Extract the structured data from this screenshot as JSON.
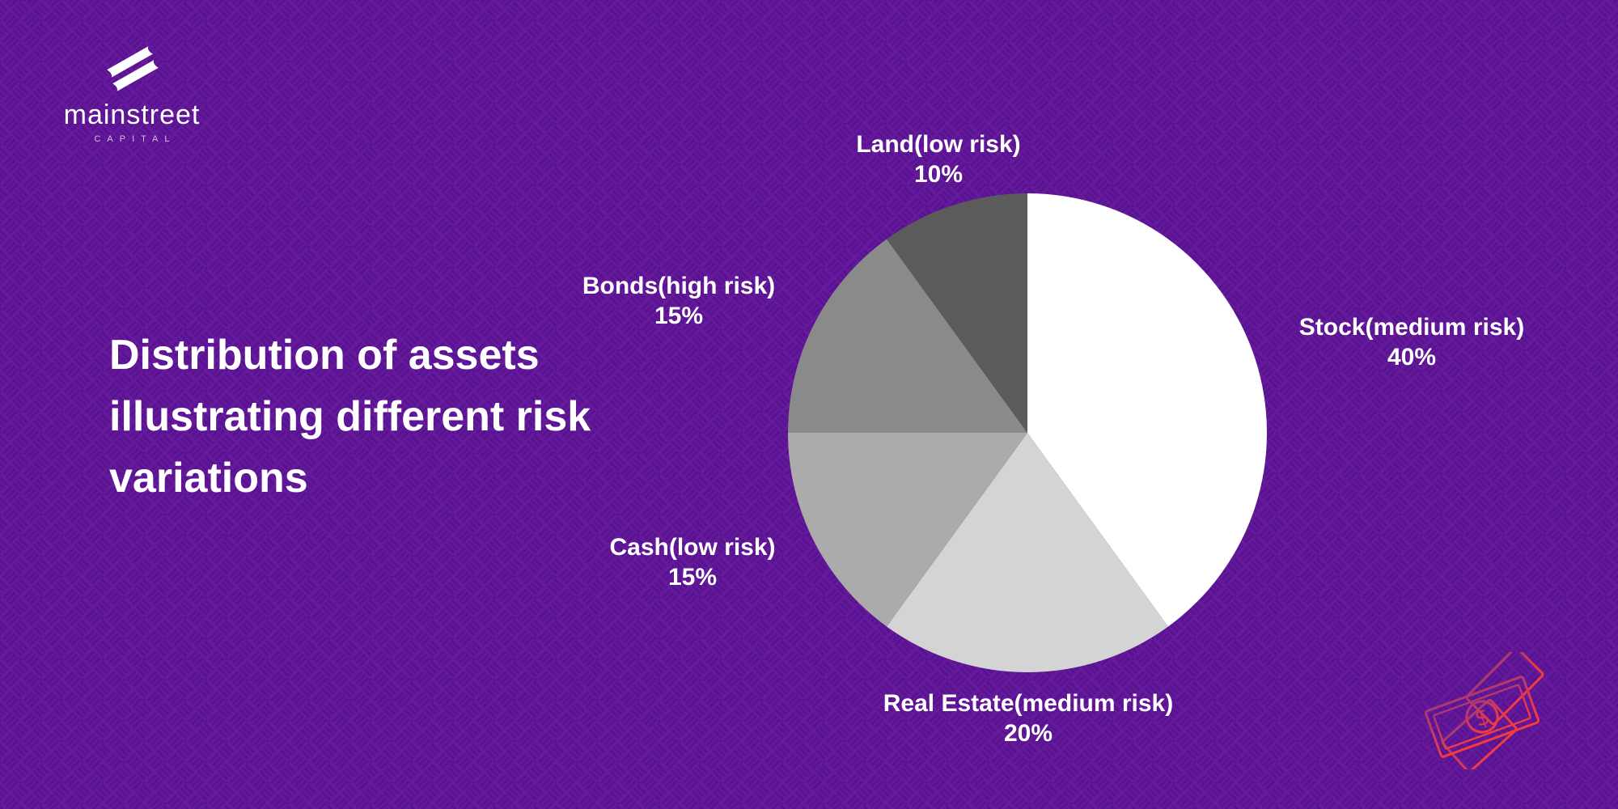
{
  "brand": {
    "name": "mainstreet",
    "tagline": "CAPITAL"
  },
  "title": {
    "text": "Distribution of assets\nillustrating different risk\nvariations"
  },
  "colors": {
    "background_base": "#67199c",
    "pattern_line": "#581390",
    "text": "#ffffff",
    "money_icon_top": "#a63a72",
    "money_icon_bottom": "#f43b40"
  },
  "icons": {
    "logo": "double-stripes-icon",
    "decoration": "banknotes-icon",
    "money_symbol": "$"
  },
  "chart_data": {
    "type": "pie",
    "title": "Distribution of assets illustrating different risk variations",
    "start_angle_deg": 0,
    "direction": "clockwise",
    "legend_position": "outside-labels",
    "slices": [
      {
        "key": "stock",
        "label": "Stock(medium risk)",
        "pct_label": "40%",
        "value": 40,
        "color": "#ffffff"
      },
      {
        "key": "real-estate",
        "label": "Real Estate(medium risk)",
        "pct_label": "20%",
        "value": 20,
        "color": "#d4d4d4"
      },
      {
        "key": "cash",
        "label": "Cash(low risk)",
        "pct_label": "15%",
        "value": 15,
        "color": "#ababab"
      },
      {
        "key": "bonds",
        "label": "Bonds(high risk)",
        "pct_label": "15%",
        "value": 15,
        "color": "#8a8a8a"
      },
      {
        "key": "land",
        "label": "Land(low risk)",
        "pct_label": "10%",
        "value": 10,
        "color": "#5b5b5b"
      }
    ]
  }
}
